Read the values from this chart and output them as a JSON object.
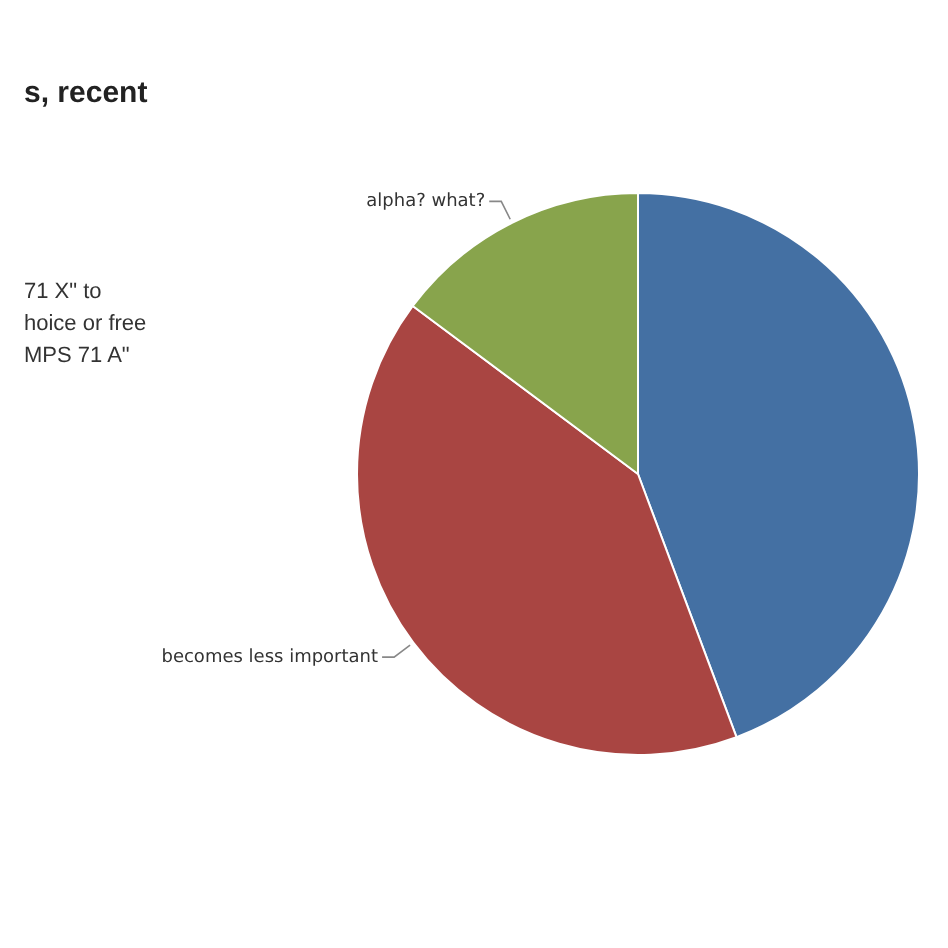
{
  "chart_data": {
    "type": "pie",
    "title": "s, recent",
    "annotations": [
      "71 X\" to",
      "hoice or free",
      "MPS 71 A\""
    ],
    "categories": [
      null,
      "becomes less important",
      "alpha? what?"
    ],
    "values": [
      44.3,
      40.9,
      14.8
    ],
    "colors": [
      "#4470a3",
      "#a94542",
      "#88a44c"
    ],
    "legend": false
  }
}
